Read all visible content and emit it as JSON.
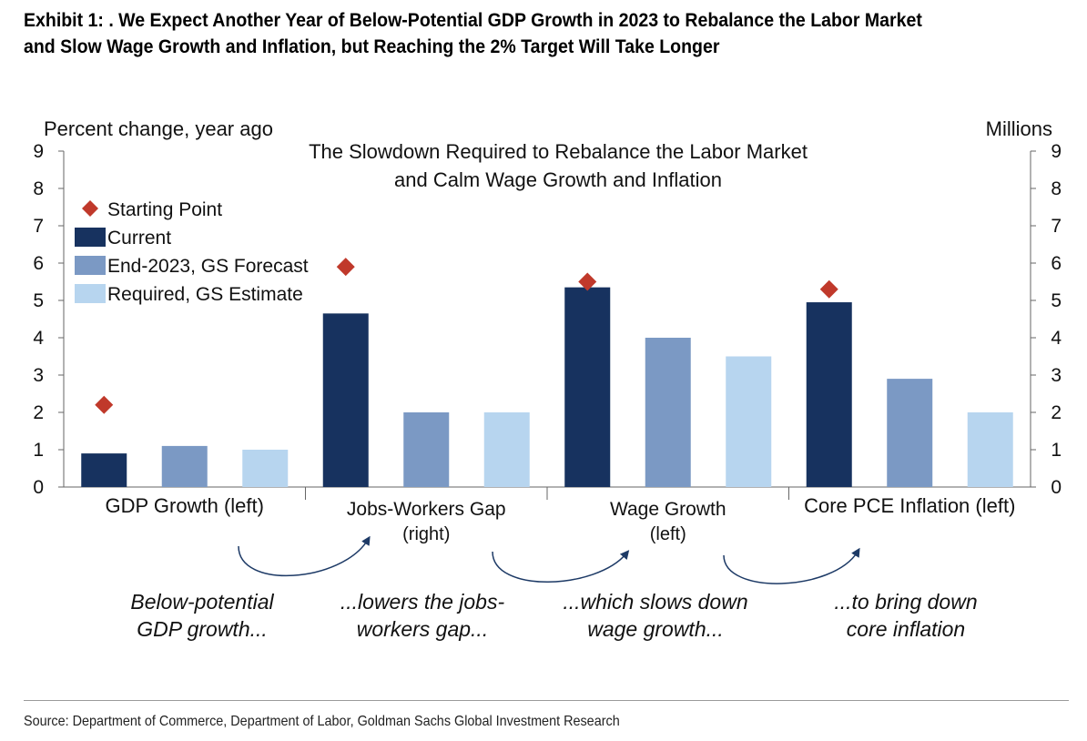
{
  "exhibit": {
    "title_line1": "Exhibit 1: . We Expect Another Year of Below-Potential GDP Growth in 2023 to Rebalance the Labor Market",
    "title_line2": "and Slow Wage Growth and Inflation, but Reaching the 2% Target Will Take Longer",
    "source": "Source: Department of Commerce, Department of Labor, Goldman Sachs Global Investment Research"
  },
  "chart_data": {
    "type": "bar",
    "title_lines": [
      "The Slowdown Required to Rebalance the Labor Market",
      "and Calm Wage Growth and Inflation"
    ],
    "ylabel_left": "Percent change, year ago",
    "ylabel_right": "Millions",
    "ylim": [
      0,
      9
    ],
    "yticks": [
      "0",
      "1",
      "2",
      "3",
      "4",
      "5",
      "6",
      "7",
      "8",
      "9"
    ],
    "grid": false,
    "legend_position": "top-left",
    "categories": [
      {
        "lines": [
          "GDP Growth (left)"
        ]
      },
      {
        "lines": [
          "Jobs-Workers Gap",
          "(right)"
        ]
      },
      {
        "lines": [
          "Wage Growth",
          "(left)"
        ]
      },
      {
        "lines": [
          "Core PCE Inflation (left)"
        ]
      }
    ],
    "series": [
      {
        "name": "Current",
        "color": "#17325f",
        "values": [
          0.9,
          4.65,
          5.35,
          4.95
        ]
      },
      {
        "name": "End-2023, GS Forecast",
        "color": "#7b99c4",
        "values": [
          1.1,
          2.0,
          4.0,
          2.9
        ]
      },
      {
        "name": "Required, GS Estimate",
        "color": "#b7d5ef",
        "values": [
          1.0,
          2.0,
          3.5,
          2.0
        ]
      }
    ],
    "markers": {
      "name": "Starting Point",
      "color": "#c0392b",
      "shape": "diamond",
      "values": [
        2.2,
        5.9,
        5.5,
        5.3
      ]
    },
    "annotations": [
      {
        "lines": [
          "Below-potential",
          "GDP growth..."
        ]
      },
      {
        "lines": [
          "...lowers the jobs-",
          "workers gap..."
        ]
      },
      {
        "lines": [
          "...which slows down",
          "wage growth..."
        ]
      },
      {
        "lines": [
          "...to bring down",
          "core inflation"
        ]
      }
    ],
    "arrow_color": "#1d3a66"
  }
}
